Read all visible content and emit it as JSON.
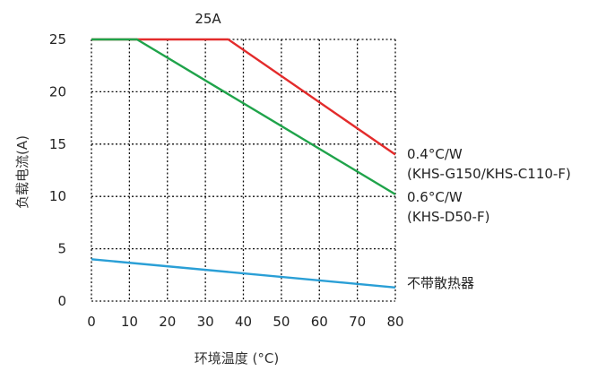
{
  "chart_data": {
    "type": "line",
    "title": "",
    "xlabel": "环境温度 (°C)",
    "ylabel": "负载电流(A)",
    "xlim": [
      0,
      80
    ],
    "ylim": [
      0,
      25
    ],
    "xticks": [
      0,
      10,
      20,
      30,
      40,
      50,
      60,
      70,
      80
    ],
    "yticks": [
      0,
      5,
      10,
      15,
      20,
      25
    ],
    "grid": true,
    "series": [
      {
        "name": "0.4°C/W (KHS-G150/KHS-C110-F)",
        "color": "#e32b2b",
        "x": [
          0,
          36,
          80
        ],
        "y": [
          25,
          25,
          14
        ]
      },
      {
        "name": "0.6°C/W (KHS-D50-F)",
        "color": "#1fa34a",
        "x": [
          0,
          12,
          80
        ],
        "y": [
          25,
          25,
          10.2
        ]
      },
      {
        "name": "不带散热器",
        "color": "#2a9fd6",
        "x": [
          0,
          80
        ],
        "y": [
          4,
          1.3
        ]
      }
    ],
    "annotations": {
      "top": "25A",
      "red_line1": "0.4°C/W",
      "red_line2": "(KHS-G150/KHS-C110-F)",
      "green_line1": "0.6°C/W",
      "green_line2": "(KHS-D50-F)",
      "blue": "不带散热器"
    }
  }
}
